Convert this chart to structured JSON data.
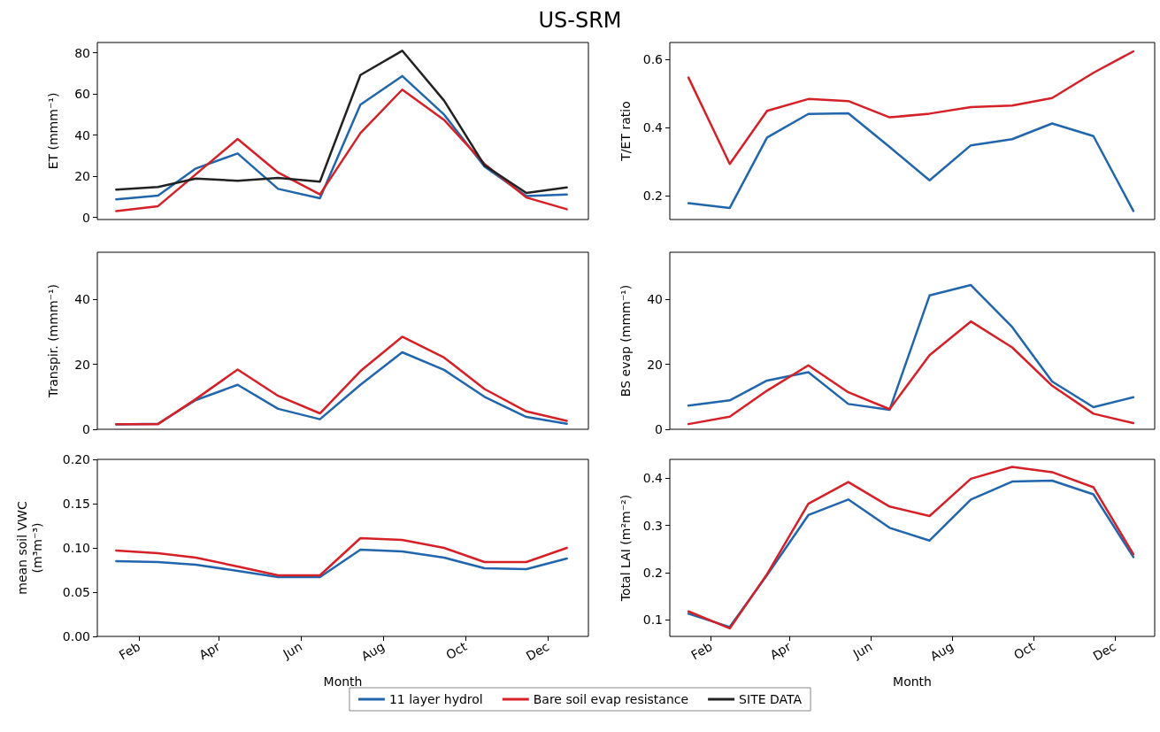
{
  "chart_data": [
    {
      "type": "line",
      "title": "US-SRM",
      "ylabel": "ET (mmm⁻¹)",
      "legend": "bottom",
      "line_style": "solid",
      "tick_labels": "y",
      "x": [
        "--01-15",
        "--02-15",
        "--03-15",
        "--04-15",
        "--05-15",
        "--06-15",
        "--07-15",
        "--08-15",
        "--09-15",
        "--10-15",
        "--11-15",
        "--12-15"
      ],
      "xlim": [
        "--01-01",
        "--12-31"
      ],
      "ylim": [
        -1,
        85
      ],
      "yticks": [
        0,
        20,
        40,
        60,
        80
      ],
      "series": [
        {
          "name": "11 layer hydrol",
          "color": "#2166ac",
          "values": [
            8.8,
            10.6,
            23.8,
            31.1,
            13.9,
            9.3,
            54.8,
            68.7,
            50,
            24.7,
            10.4,
            11.2
          ]
        },
        {
          "name": "Bare soil evap resistance",
          "color": "#d62027",
          "values": [
            3.1,
            5.5,
            21,
            38.1,
            21.8,
            11.2,
            41,
            62.1,
            47.4,
            26,
            9.7,
            4
          ]
        },
        {
          "name": "SITE DATA",
          "color": "#222222",
          "values": [
            13.5,
            14.8,
            18.9,
            17.8,
            19.2,
            17.4,
            69.2,
            81,
            56.8,
            25.3,
            11.9,
            14.6
          ]
        }
      ]
    },
    {
      "type": "line",
      "ylabel": "T/ET ratio",
      "line_style": "solid",
      "tick_labels": "y",
      "x": [
        "--01-15",
        "--02-15",
        "--03-15",
        "--04-15",
        "--05-15",
        "--06-15",
        "--07-15",
        "--08-15",
        "--09-15",
        "--10-15",
        "--11-15",
        "--12-15"
      ],
      "xlim": [
        "--01-01",
        "--12-31"
      ],
      "ylim": [
        0.13,
        0.65
      ],
      "yticks": [
        0.2,
        0.4,
        0.6
      ],
      "series": [
        {
          "color": "#2166ac",
          "values": [
            0.178,
            0.164,
            0.371,
            0.44,
            0.442,
            0.343,
            0.245,
            0.348,
            0.366,
            0.412,
            0.375,
            0.155
          ]
        },
        {
          "color": "#d62027",
          "values": [
            0.547,
            0.293,
            0.449,
            0.484,
            0.478,
            0.43,
            0.441,
            0.46,
            0.465,
            0.487,
            0.561,
            0.624
          ]
        }
      ]
    },
    {
      "type": "line",
      "ylabel": "Transpir. (mmm⁻¹)",
      "line_style": "solid",
      "tick_labels": "y",
      "x": [
        "--01-15",
        "--02-15",
        "--03-15",
        "--04-15",
        "--05-15",
        "--06-15",
        "--07-15",
        "--08-15",
        "--09-15",
        "--10-15",
        "--11-15",
        "--12-15"
      ],
      "xlim": [
        "--01-01",
        "--12-31"
      ],
      "ylim": [
        0,
        54.5
      ],
      "yticks": [
        0,
        20,
        40
      ],
      "series": [
        {
          "color": "#2166ac",
          "values": [
            1.5,
            1.7,
            9,
            13.7,
            6.3,
            3.1,
            13.7,
            23.7,
            18.3,
            10,
            3.8,
            1.7
          ]
        },
        {
          "color": "#d62027",
          "values": [
            1.6,
            1.6,
            9.3,
            18.4,
            10.3,
            4.9,
            17.9,
            28.5,
            22.1,
            12.4,
            5.5,
            2.6
          ]
        }
      ]
    },
    {
      "type": "line",
      "ylabel": "BS evap (mmm⁻¹)",
      "line_style": "solid",
      "tick_labels": "y",
      "x": [
        "--01-15",
        "--02-15",
        "--03-15",
        "--04-15",
        "--05-15",
        "--06-15",
        "--07-15",
        "--08-15",
        "--09-15",
        "--10-15",
        "--11-15",
        "--12-15"
      ],
      "xlim": [
        "--01-01",
        "--12-31"
      ],
      "ylim": [
        0,
        54.5
      ],
      "yticks": [
        0,
        20,
        40
      ],
      "series": [
        {
          "color": "#2166ac",
          "values": [
            7.3,
            8.9,
            15,
            17.6,
            7.8,
            6,
            41.2,
            44.4,
            31.5,
            14.7,
            6.8,
            9.9
          ]
        },
        {
          "color": "#d62027",
          "values": [
            1.6,
            3.9,
            11.9,
            19.7,
            11.4,
            6.2,
            22.8,
            33.2,
            25.2,
            13.4,
            4.8,
            1.9
          ]
        }
      ]
    },
    {
      "type": "line",
      "ylabel": "mean soil VWC\n(m³m⁻³)",
      "xlabel": "Month",
      "line_style": "solid",
      "x": [
        "--01-15",
        "--02-15",
        "--03-15",
        "--04-15",
        "--05-15",
        "--06-15",
        "--07-15",
        "--08-15",
        "--09-15",
        "--10-15",
        "--11-15",
        "--12-15"
      ],
      "xlim": [
        "--01-01",
        "--12-31"
      ],
      "xticks": [
        {
          "value": "--02-01",
          "label": "Feb"
        },
        {
          "value": "--04-01",
          "label": "Apr"
        },
        {
          "value": "--06-01",
          "label": "Jun"
        },
        {
          "value": "--08-01",
          "label": "Aug"
        },
        {
          "value": "--10-01",
          "label": "Oct"
        },
        {
          "value": "--12-01",
          "label": "Dec"
        }
      ],
      "ylim": [
        0,
        0.2
      ],
      "yticks": [
        {
          "value": 0,
          "label": "0.00"
        },
        {
          "value": 0.05,
          "label": "0.05"
        },
        {
          "value": 0.1,
          "label": "0.10"
        },
        {
          "value": 0.15,
          "label": "0.15"
        },
        {
          "value": 0.2,
          "label": "0.20"
        }
      ],
      "series": [
        {
          "color": "#2166ac",
          "values": [
            0.085,
            0.084,
            0.081,
            0.074,
            0.067,
            0.067,
            0.098,
            0.096,
            0.089,
            0.077,
            0.076,
            0.088
          ]
        },
        {
          "color": "#d62027",
          "values": [
            0.097,
            0.094,
            0.089,
            0.079,
            0.069,
            0.069,
            0.111,
            0.109,
            0.1,
            0.084,
            0.084,
            0.1
          ]
        }
      ]
    },
    {
      "type": "line",
      "ylabel": "Total LAI (m²m⁻²)",
      "xlabel": "Month",
      "line_style": "solid",
      "x": [
        "--01-15",
        "--02-15",
        "--03-15",
        "--04-15",
        "--05-15",
        "--06-15",
        "--07-15",
        "--08-15",
        "--09-15",
        "--10-15",
        "--11-15",
        "--12-15"
      ],
      "xlim": [
        "--01-01",
        "--12-31"
      ],
      "xticks": [
        {
          "value": "--02-01",
          "label": "Feb"
        },
        {
          "value": "--04-01",
          "label": "Apr"
        },
        {
          "value": "--06-01",
          "label": "Jun"
        },
        {
          "value": "--08-01",
          "label": "Aug"
        },
        {
          "value": "--10-01",
          "label": "Oct"
        },
        {
          "value": "--12-01",
          "label": "Dec"
        }
      ],
      "ylim": [
        0.065,
        0.44
      ],
      "yticks": [
        0.1,
        0.2,
        0.3,
        0.4
      ],
      "series": [
        {
          "color": "#2166ac",
          "values": [
            0.113,
            0.085,
            0.195,
            0.322,
            0.355,
            0.295,
            0.268,
            0.355,
            0.393,
            0.395,
            0.366,
            0.233
          ]
        },
        {
          "color": "#d62027",
          "values": [
            0.118,
            0.082,
            0.197,
            0.346,
            0.392,
            0.34,
            0.32,
            0.399,
            0.424,
            0.413,
            0.381,
            0.239
          ]
        }
      ]
    }
  ]
}
